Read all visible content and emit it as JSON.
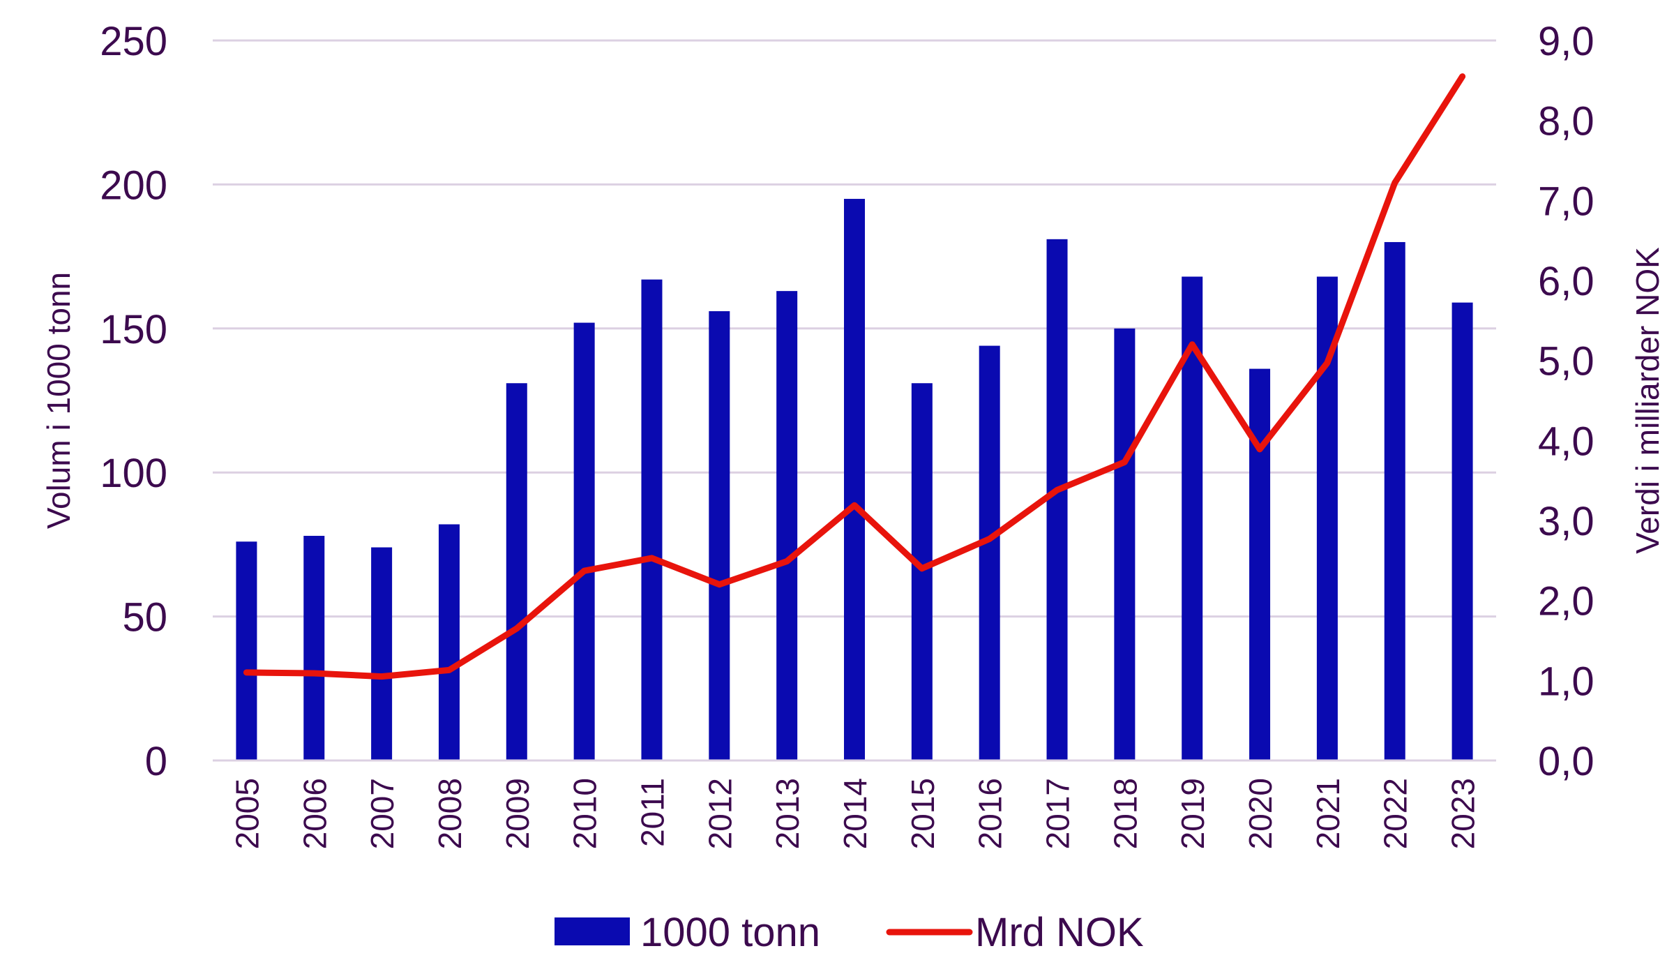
{
  "chart_data": {
    "type": "bar",
    "categories": [
      "2005",
      "2006",
      "2007",
      "2008",
      "2009",
      "2010",
      "2011",
      "2012",
      "2013",
      "2014",
      "2015",
      "2016",
      "2017",
      "2018",
      "2019",
      "2020",
      "2021",
      "2022",
      "2023"
    ],
    "series": [
      {
        "name": "1000 tonn",
        "type": "bar",
        "axis": "left",
        "color": "#0a0ab0",
        "values": [
          76,
          78,
          74,
          82,
          131,
          152,
          167,
          156,
          163,
          195,
          131,
          144,
          181,
          150,
          168,
          136,
          168,
          180,
          159
        ]
      },
      {
        "name": "Mrd NOK",
        "type": "line",
        "axis": "right",
        "color": "#e8140c",
        "values": [
          1.1,
          1.09,
          1.05,
          1.13,
          1.65,
          2.37,
          2.53,
          2.2,
          2.49,
          3.19,
          2.4,
          2.77,
          3.38,
          3.73,
          5.2,
          3.89,
          4.97,
          7.22,
          8.55
        ]
      }
    ],
    "yleft": {
      "label": "Volum i 1000 tonn",
      "ylim": [
        0,
        250
      ],
      "ticks": [
        "0",
        "50",
        "100",
        "150",
        "200",
        "250"
      ],
      "tick_values": [
        0,
        50,
        100,
        150,
        200,
        250
      ]
    },
    "yright": {
      "label": "Verdi i milliarder NOK",
      "ylim": [
        0,
        9
      ],
      "ticks": [
        "0,0",
        "1,0",
        "2,0",
        "3,0",
        "4,0",
        "5,0",
        "6,0",
        "7,0",
        "8,0",
        "9,0"
      ],
      "tick_values": [
        0,
        1,
        2,
        3,
        4,
        5,
        6,
        7,
        8,
        9
      ]
    },
    "grid": true,
    "legend": {
      "position": "bottom",
      "entries": [
        "1000 tonn",
        "Mrd NOK"
      ]
    },
    "colors": {
      "text": "#3c0a4e",
      "grid": "#dcd0e2"
    }
  }
}
